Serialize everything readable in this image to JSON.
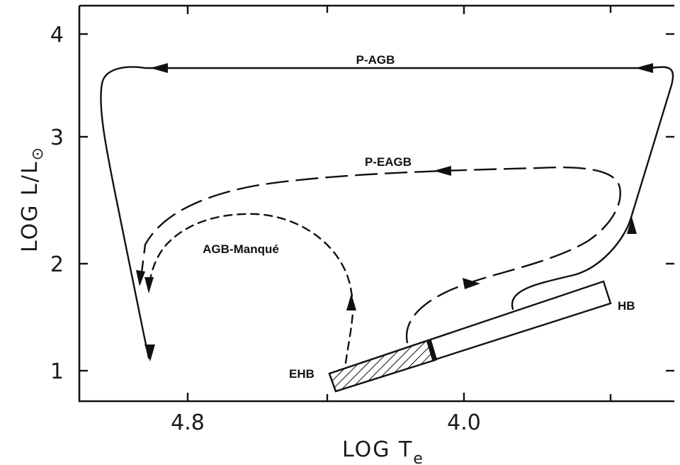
{
  "axes": {
    "x_title": "LOG T",
    "x_title_sub": "e",
    "y_title": "LOG L/L",
    "y_title_sub": "⊙",
    "x_ticks": [
      "4.8",
      "4.0"
    ],
    "y_ticks": [
      "4",
      "3",
      "2",
      "1"
    ]
  },
  "tracks": {
    "pagb": "P-AGB",
    "peagb": "P-EAGB",
    "agb_manque": "AGB-Manqué"
  },
  "regions": {
    "hb": "HB",
    "ehb": "EHB"
  },
  "colors": {
    "ink": "#111111",
    "background": "#ffffff"
  }
}
